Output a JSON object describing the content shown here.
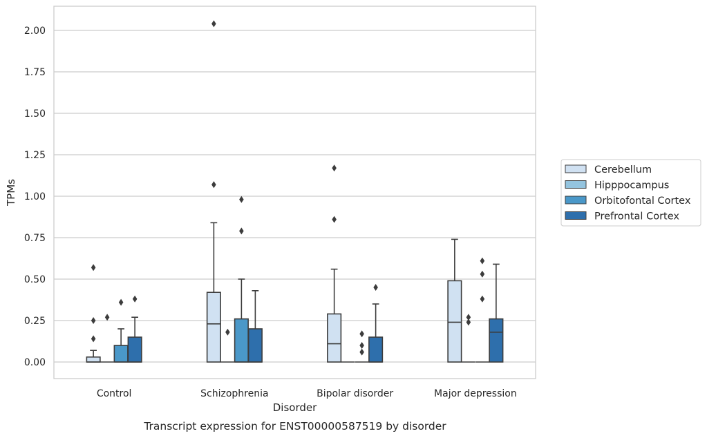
{
  "chart_data": {
    "type": "box",
    "categories": [
      "Control",
      "Schizophrenia",
      "Bipolar disorder",
      "Major depression"
    ],
    "xlabel": "Disorder",
    "ylabel": "TPMs",
    "caption": "Transcript expression for ENST00000587519 by disorder",
    "ylim": [
      -0.1,
      2.15
    ],
    "yticks": [
      0.0,
      0.25,
      0.5,
      0.75,
      1.0,
      1.25,
      1.5,
      1.75,
      2.0
    ],
    "ytick_labels": [
      "0.00",
      "0.25",
      "0.50",
      "0.75",
      "1.00",
      "1.25",
      "1.50",
      "1.75",
      "2.00"
    ],
    "grid": true,
    "legend_position": "right",
    "series": [
      {
        "name": "Cerebellum",
        "color": "#d0e1f2",
        "boxes": [
          {
            "q1": 0.0,
            "median": 0.0,
            "q3": 0.03,
            "whislo": 0.0,
            "whishi": 0.07,
            "fliers": [
              0.14,
              0.25,
              0.57
            ]
          },
          {
            "q1": 0.0,
            "median": 0.23,
            "q3": 0.42,
            "whislo": 0.0,
            "whishi": 0.84,
            "fliers": [
              1.07,
              2.04
            ]
          },
          {
            "q1": 0.0,
            "median": 0.11,
            "q3": 0.29,
            "whislo": 0.0,
            "whishi": 0.56,
            "fliers": [
              0.86,
              1.17
            ]
          },
          {
            "q1": 0.0,
            "median": 0.24,
            "q3": 0.49,
            "whislo": 0.0,
            "whishi": 0.74,
            "fliers": []
          }
        ]
      },
      {
        "name": "Hipppocampus",
        "color": "#94c4df",
        "boxes": [
          {
            "q1": 0.0,
            "median": 0.0,
            "q3": 0.0,
            "whislo": 0.0,
            "whishi": 0.0,
            "fliers": [
              0.27
            ]
          },
          {
            "q1": 0.0,
            "median": 0.0,
            "q3": 0.0,
            "whislo": 0.0,
            "whishi": 0.0,
            "fliers": [
              0.18
            ]
          },
          {
            "q1": 0.0,
            "median": 0.0,
            "q3": 0.0,
            "whislo": 0.0,
            "whishi": 0.0,
            "fliers": []
          },
          {
            "q1": 0.0,
            "median": 0.0,
            "q3": 0.0,
            "whislo": 0.0,
            "whishi": 0.0,
            "fliers": [
              0.24,
              0.27
            ]
          }
        ]
      },
      {
        "name": "Orbitofontal Cortex",
        "color": "#4a98c9",
        "boxes": [
          {
            "q1": 0.0,
            "median": 0.0,
            "q3": 0.1,
            "whislo": 0.0,
            "whishi": 0.2,
            "fliers": [
              0.36
            ]
          },
          {
            "q1": 0.0,
            "median": 0.0,
            "q3": 0.26,
            "whislo": 0.0,
            "whishi": 0.5,
            "fliers": [
              0.79,
              0.98
            ]
          },
          {
            "q1": 0.0,
            "median": 0.0,
            "q3": 0.0,
            "whislo": 0.0,
            "whishi": 0.0,
            "fliers": [
              0.06,
              0.1,
              0.17
            ]
          },
          {
            "q1": 0.0,
            "median": 0.0,
            "q3": 0.0,
            "whislo": 0.0,
            "whishi": 0.0,
            "fliers": [
              0.38,
              0.53,
              0.61
            ]
          }
        ]
      },
      {
        "name": "Prefrontal Cortex",
        "color": "#2e6fac",
        "boxes": [
          {
            "q1": 0.0,
            "median": 0.0,
            "q3": 0.15,
            "whislo": 0.0,
            "whishi": 0.27,
            "fliers": [
              0.38
            ]
          },
          {
            "q1": 0.0,
            "median": 0.0,
            "q3": 0.2,
            "whislo": 0.0,
            "whishi": 0.43,
            "fliers": []
          },
          {
            "q1": 0.0,
            "median": 0.0,
            "q3": 0.15,
            "whislo": 0.0,
            "whishi": 0.35,
            "fliers": [
              0.45
            ]
          },
          {
            "q1": 0.0,
            "median": 0.18,
            "q3": 0.26,
            "whislo": 0.0,
            "whishi": 0.59,
            "fliers": []
          }
        ]
      }
    ]
  }
}
